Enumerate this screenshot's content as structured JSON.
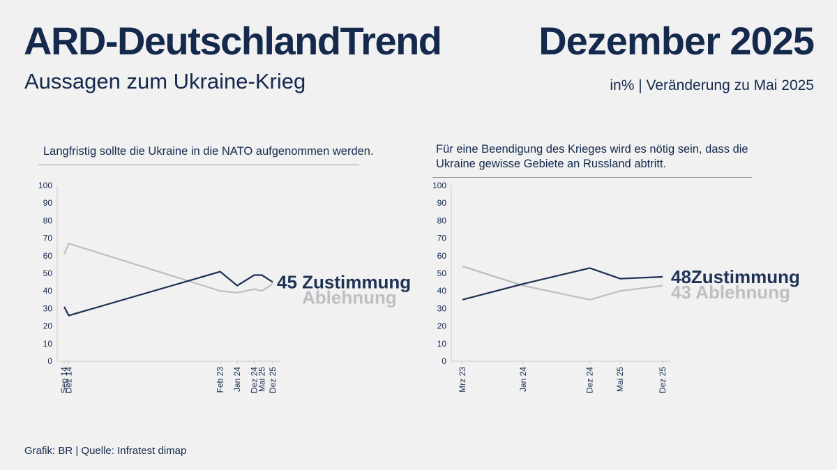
{
  "header": {
    "title": "ARD-DeutschlandTrend",
    "edition": "Dezember 2025",
    "subtitle": "Aussagen zum Ukraine-Krieg",
    "unit_note": "in% | Veränderung zu Mai 2025"
  },
  "footer": {
    "credit": "Grafik: BR | Quelle: Infratest dimap"
  },
  "colors": {
    "background": "#f1f1f2",
    "navy_text": "#14294c",
    "line_dark": "#1e3254",
    "line_gray": "#bdbfc1",
    "axis": "#c9cacc",
    "title_rule": "#9b9b9b"
  },
  "chart_data": [
    {
      "type": "line",
      "title": "Langfristig sollte die Ukraine in die NATO aufgenommen werden.",
      "title_lines": [
        "Langfristig sollte die Ukraine in die NATO aufgenommen werden."
      ],
      "ylim": [
        0,
        100
      ],
      "yticks": [
        0,
        10,
        20,
        30,
        40,
        50,
        60,
        70,
        80,
        90,
        100
      ],
      "grid": false,
      "legend_position": "right-of-line-end",
      "categories": [
        "Sep 14",
        "Dez 14",
        "Feb 23",
        "Jan 24",
        "Dez 24",
        "Mai 25",
        "Dez 25"
      ],
      "x_months_offset": [
        0,
        3,
        101,
        112,
        123,
        128,
        135
      ],
      "series": [
        {
          "name": "Zustimmung",
          "values": [
            31,
            26,
            51,
            43,
            49,
            49,
            45
          ],
          "end_value": 45,
          "end_text": "45 Zustimmung",
          "color": "#1e3254"
        },
        {
          "name": "Ablehnung",
          "values": [
            61,
            67,
            40,
            39,
            41,
            40,
            44
          ],
          "end_value": 44,
          "end_text": "Ablehnung",
          "color": "#bdbfc1"
        }
      ]
    },
    {
      "type": "line",
      "title": "Für eine Beendigung des Krieges wird es nötig sein, dass die Ukraine gewisse Gebiete an Russland abtritt.",
      "title_lines": [
        "Für eine Beendigung des Krieges wird es nötig sein, dass die",
        "Ukraine gewisse Gebiete an Russland abtritt."
      ],
      "ylim": [
        0,
        100
      ],
      "yticks": [
        0,
        10,
        20,
        30,
        40,
        50,
        60,
        70,
        80,
        90,
        100
      ],
      "grid": false,
      "legend_position": "right-of-line-end",
      "categories": [
        "Mrz 23",
        "Jan 24",
        "Dez 24",
        "Mai 25",
        "Dez 25"
      ],
      "x_months_offset": [
        0,
        10,
        21,
        26,
        33
      ],
      "series": [
        {
          "name": "Zustimmung",
          "values": [
            35,
            44,
            53,
            47,
            48
          ],
          "end_value": 48,
          "end_text": "48Zustimmung",
          "color": "#1e3254"
        },
        {
          "name": "Ablehnung",
          "values": [
            54,
            43,
            35,
            40,
            43
          ],
          "end_value": 43,
          "end_text": "43 Ablehnung",
          "color": "#bdbfc1"
        }
      ]
    }
  ]
}
